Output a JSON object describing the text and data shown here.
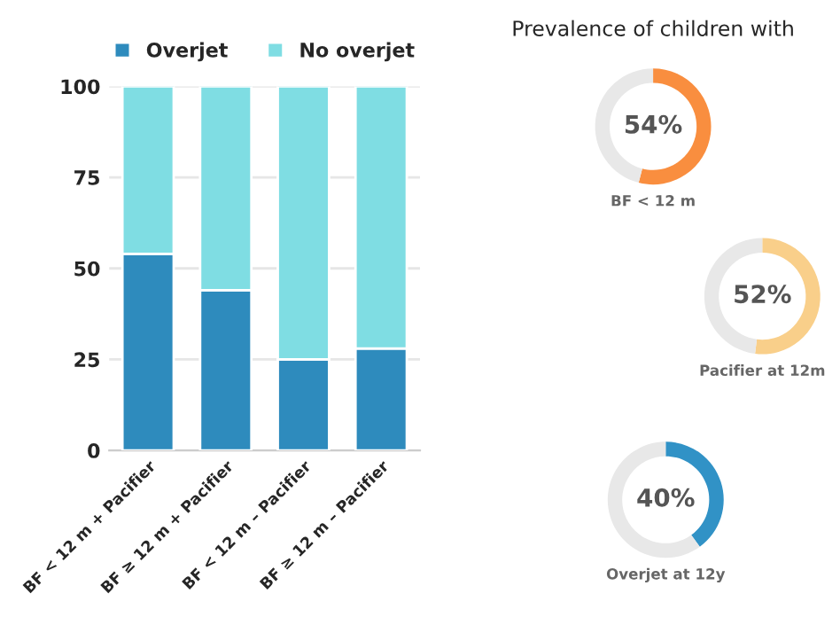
{
  "chart_data": [
    {
      "type": "bar",
      "stacked": true,
      "categories": [
        "BF < 12 m + Pacifier",
        "BF ≥ 12 m + Pacifier",
        "BF < 12 m – Pacifier",
        "BF ≥ 12 m – Pacifier"
      ],
      "series": [
        {
          "name": "Overjet",
          "color": "#2e8bbd",
          "values": [
            54,
            44,
            25,
            28
          ]
        },
        {
          "name": "No overjet",
          "color": "#7fdde3",
          "values": [
            46,
            56,
            75,
            72
          ]
        }
      ],
      "ylim": [
        0,
        100
      ],
      "yticks": [
        0,
        25,
        50,
        75,
        100
      ],
      "grid": "y",
      "legend": "top"
    },
    {
      "type": "donut",
      "title": "Prevalence of children with",
      "xlabel": "BF < 12 m",
      "categories": [
        null,
        null
      ],
      "values": [
        54,
        46
      ],
      "colors": [
        "#f98e3f",
        "#e8e8e8"
      ],
      "value_labels": [
        "54%",
        null
      ]
    },
    {
      "type": "donut",
      "xlabel": "Pacifier at 12m",
      "categories": [
        null,
        null
      ],
      "values": [
        52,
        48
      ],
      "colors": [
        "#f9cf8a",
        "#e8e8e8"
      ],
      "value_labels": [
        "52%",
        null
      ]
    },
    {
      "type": "donut",
      "xlabel": "Overjet at 12y",
      "categories": [
        null,
        null
      ],
      "values": [
        40,
        60
      ],
      "colors": [
        "#3192c6",
        "#e8e8e8"
      ],
      "value_labels": [
        "40%",
        null
      ]
    }
  ]
}
